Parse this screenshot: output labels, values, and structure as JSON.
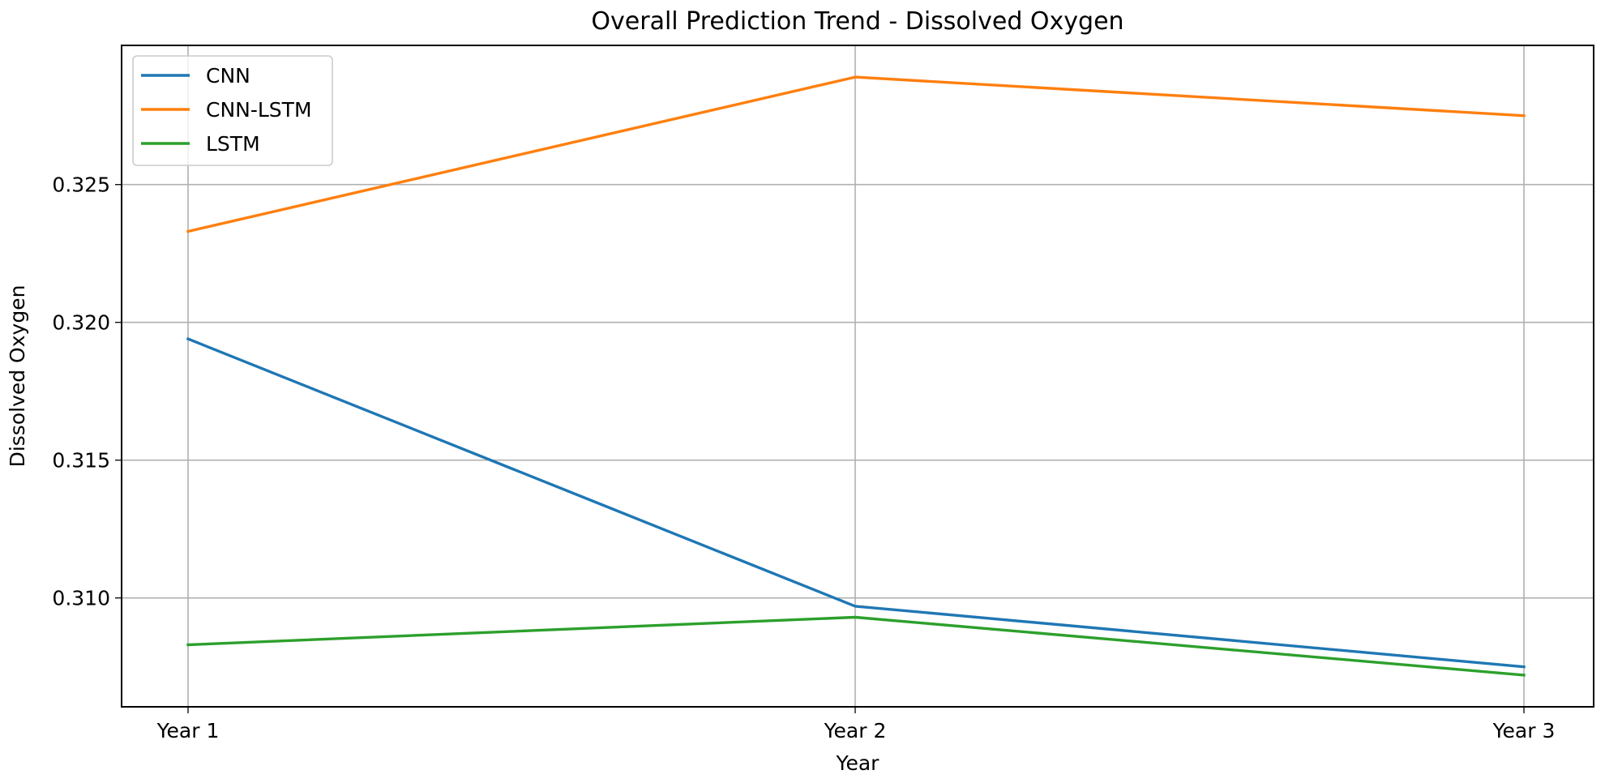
{
  "chart_data": {
    "type": "line",
    "title": "Overall Prediction Trend - Dissolved Oxygen",
    "xlabel": "Year",
    "ylabel": "Dissolved Oxygen",
    "categories": [
      "Year 1",
      "Year 2",
      "Year 3"
    ],
    "ylim": [
      0.30605,
      0.33005
    ],
    "yticks": [
      0.31,
      0.315,
      0.32,
      0.325
    ],
    "ytick_labels": [
      "0.310",
      "0.315",
      "0.320",
      "0.325"
    ],
    "grid": true,
    "legend_position": "upper-left",
    "series": [
      {
        "name": "CNN",
        "color": "#1f77b4",
        "values": [
          0.3194,
          0.3097,
          0.3075
        ]
      },
      {
        "name": "CNN-LSTM",
        "color": "#ff7f0e",
        "values": [
          0.3233,
          0.3289,
          0.3275
        ]
      },
      {
        "name": "LSTM",
        "color": "#2ca02c",
        "values": [
          0.3083,
          0.3093,
          0.3072
        ]
      }
    ]
  }
}
